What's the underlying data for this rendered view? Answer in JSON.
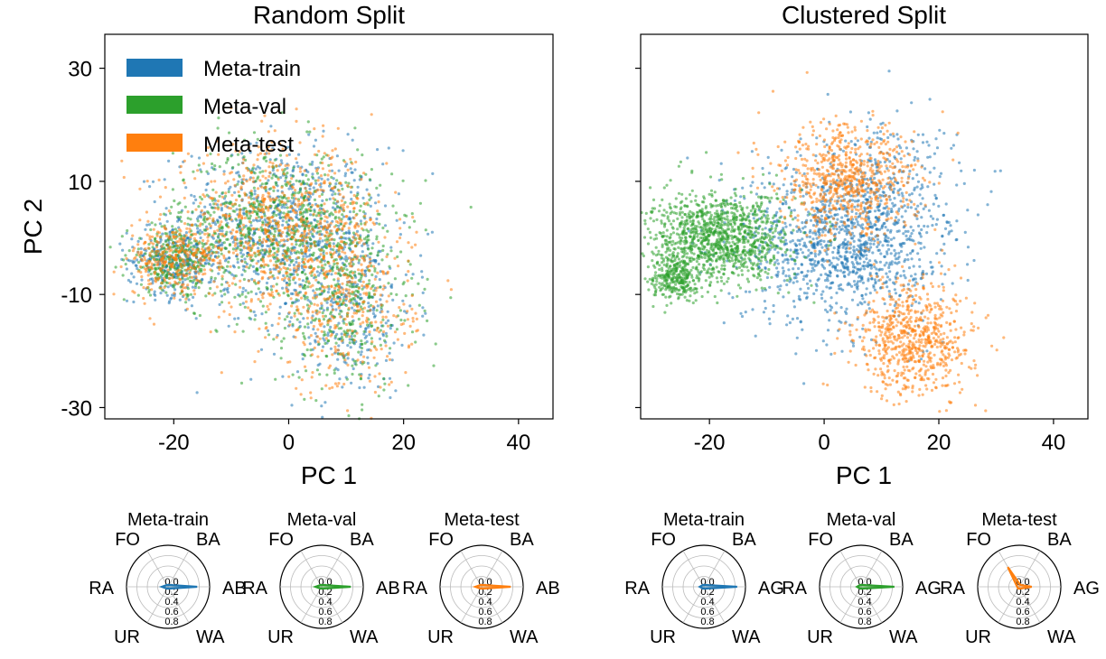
{
  "colors": {
    "train": "#1f77b4",
    "val": "#2ca02c",
    "test": "#ff7f0e"
  },
  "chart_data": [
    {
      "type": "scatter",
      "title": "Random Split",
      "xlabel": "PC 1",
      "ylabel": "PC 2",
      "xlim": [
        -32,
        46
      ],
      "ylim": [
        -32,
        36
      ],
      "xticks": [
        -20,
        0,
        20,
        40
      ],
      "yticks": [
        -30,
        -10,
        10,
        30
      ],
      "xtick_labels": [
        "-20",
        "0",
        "20",
        "40"
      ],
      "ytick_labels": [
        "-30",
        "-10",
        "10",
        "30"
      ],
      "legend": {
        "placement": "top-left",
        "entries": [
          "Meta-train",
          "Meta-val",
          "Meta-test"
        ]
      },
      "series": [
        {
          "name": "Meta-train",
          "key": "train",
          "clusters": [
            {
              "cx": -2,
              "cy": 2,
              "sx": 9,
              "sy": 7,
              "w": 0.55
            },
            {
              "cx": 10,
              "cy": -12,
              "sx": 6,
              "sy": 8,
              "w": 0.25
            },
            {
              "cx": -20,
              "cy": -4,
              "sx": 4,
              "sy": 3,
              "w": 0.2
            }
          ]
        },
        {
          "name": "Meta-val",
          "key": "val",
          "clusters": [
            {
              "cx": -2,
              "cy": 2,
              "sx": 9,
              "sy": 7,
              "w": 0.55
            },
            {
              "cx": 10,
              "cy": -12,
              "sx": 6,
              "sy": 8,
              "w": 0.25
            },
            {
              "cx": -20,
              "cy": -4,
              "sx": 4,
              "sy": 3,
              "w": 0.2
            }
          ]
        },
        {
          "name": "Meta-test",
          "key": "test",
          "clusters": [
            {
              "cx": -2,
              "cy": 2,
              "sx": 9,
              "sy": 7,
              "w": 0.55
            },
            {
              "cx": 10,
              "cy": -12,
              "sx": 6,
              "sy": 8,
              "w": 0.25
            },
            {
              "cx": -20,
              "cy": -4,
              "sx": 4,
              "sy": 3,
              "w": 0.2
            }
          ]
        }
      ]
    },
    {
      "type": "scatter",
      "title": "Clustered Split",
      "xlabel": "PC 1",
      "ylabel": "",
      "xlim": [
        -32,
        46
      ],
      "ylim": [
        -32,
        36
      ],
      "xticks": [
        -20,
        0,
        20,
        40
      ],
      "yticks": [
        -30,
        -10,
        10,
        30
      ],
      "xtick_labels": [
        "-20",
        "0",
        "20",
        "40"
      ],
      "ytick_labels": [],
      "series": [
        {
          "name": "Meta-train",
          "key": "train",
          "clusters": [
            {
              "cx": 2,
              "cy": -1,
              "sx": 8,
              "sy": 7,
              "w": 0.7
            },
            {
              "cx": 10,
              "cy": 6,
              "sx": 7,
              "sy": 8,
              "w": 0.3
            }
          ]
        },
        {
          "name": "Meta-val",
          "key": "val",
          "clusters": [
            {
              "cx": -18,
              "cy": 0,
              "sx": 6,
              "sy": 4,
              "w": 0.8
            },
            {
              "cx": -26,
              "cy": -7,
              "sx": 2,
              "sy": 2,
              "w": 0.2
            }
          ]
        },
        {
          "name": "Meta-test",
          "key": "test",
          "clusters": [
            {
              "cx": 16,
              "cy": -18,
              "sx": 5,
              "sy": 5,
              "w": 0.5
            },
            {
              "cx": 4,
              "cy": 10,
              "sx": 6,
              "sy": 5,
              "w": 0.5
            }
          ]
        }
      ]
    },
    {
      "type": "radar",
      "group": "Random Split",
      "charts": [
        {
          "title": "Meta-train",
          "key": "train",
          "labels": [
            "AB",
            "BA",
            "FO",
            "RA",
            "UR",
            "WA"
          ],
          "radial_ticks": [
            "0.0",
            "0.2",
            "0.4",
            "0.6",
            "0.8"
          ],
          "values": [
            0.7,
            0.05,
            0.05,
            0.15,
            0.05,
            0.05
          ]
        },
        {
          "title": "Meta-val",
          "key": "val",
          "labels": [
            "AB",
            "BA",
            "FO",
            "RA",
            "UR",
            "WA"
          ],
          "radial_ticks": [
            "0.0",
            "0.2",
            "0.4",
            "0.6",
            "0.8"
          ],
          "values": [
            0.7,
            0.05,
            0.05,
            0.15,
            0.05,
            0.05
          ]
        },
        {
          "title": "Meta-test",
          "key": "test",
          "labels": [
            "AB",
            "BA",
            "FO",
            "RA",
            "UR",
            "WA"
          ],
          "radial_ticks": [
            "0.0",
            "0.2",
            "0.4",
            "0.6",
            "0.8"
          ],
          "values": [
            0.7,
            0.05,
            0.05,
            0.15,
            0.05,
            0.05
          ]
        }
      ]
    },
    {
      "type": "radar",
      "group": "Clustered Split",
      "charts": [
        {
          "title": "Meta-train",
          "key": "train",
          "labels": [
            "AG",
            "BA",
            "FO",
            "RA",
            "UR",
            "WA"
          ],
          "radial_ticks": [
            "0.0",
            "0.2",
            "0.4",
            "0.6",
            "0.8"
          ],
          "values": [
            0.8,
            0.05,
            0.05,
            0.1,
            0.05,
            0.05
          ]
        },
        {
          "title": "Meta-val",
          "key": "val",
          "labels": [
            "AG",
            "BA",
            "FO",
            "RA",
            "UR",
            "WA"
          ],
          "radial_ticks": [
            "0.0",
            "0.2",
            "0.4",
            "0.6",
            "0.8"
          ],
          "values": [
            0.8,
            0.05,
            0.05,
            0.1,
            0.05,
            0.05
          ]
        },
        {
          "title": "Meta-test",
          "key": "test",
          "labels": [
            "AG",
            "BA",
            "FO",
            "RA",
            "UR",
            "WA"
          ],
          "radial_ticks": [
            "0.0",
            "0.2",
            "0.4",
            "0.6",
            "0.8"
          ],
          "values": [
            0.3,
            0.05,
            0.55,
            0.05,
            0.05,
            0.05
          ]
        }
      ]
    }
  ]
}
